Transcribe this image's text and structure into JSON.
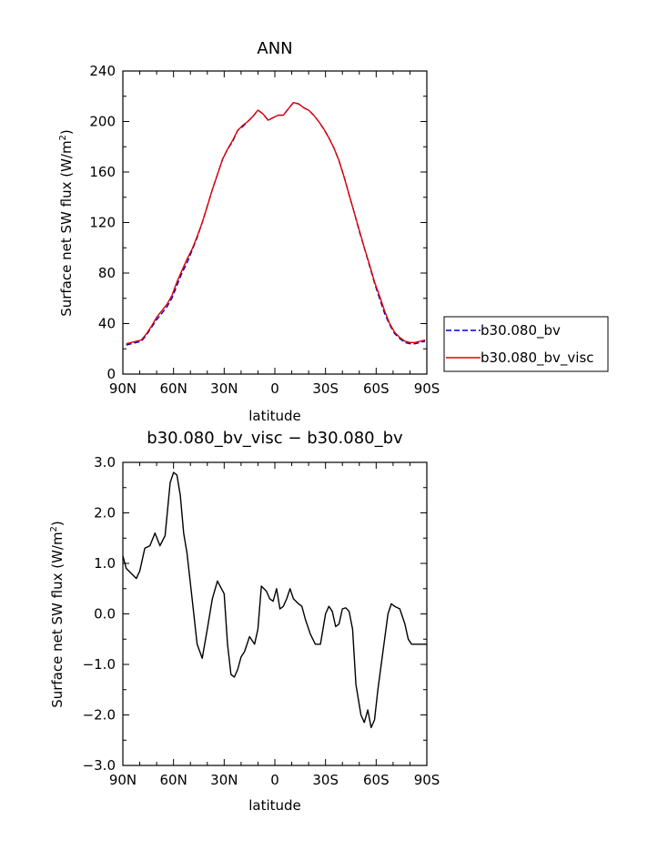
{
  "chart_data": [
    {
      "type": "line",
      "title": "ANN",
      "xlabel": "latitude",
      "ylabel": "Surface net SW flux (W/m²)",
      "ylabel_parts": [
        "Surface net SW flux (W/m",
        "2",
        ")"
      ],
      "xlim": [
        90,
        -90
      ],
      "ylim": [
        0,
        240
      ],
      "xticks": [
        90,
        60,
        30,
        0,
        -30,
        -60,
        -90
      ],
      "xtick_labels": [
        "90N",
        "60N",
        "30N",
        "0",
        "30S",
        "60S",
        "90S"
      ],
      "yticks": [
        0,
        40,
        80,
        120,
        160,
        200,
        240
      ],
      "ytick_labels": [
        "0",
        "40",
        "80",
        "120",
        "160",
        "200",
        "240"
      ],
      "grid": false,
      "legend_placement": "right",
      "x": [
        88,
        85,
        82,
        79,
        76,
        73,
        70,
        67,
        64,
        61,
        58,
        55,
        52,
        49,
        46,
        43,
        40,
        37,
        34,
        31,
        28,
        25,
        22,
        19,
        16,
        13,
        10,
        7,
        4,
        1,
        -2,
        -5,
        -8,
        -11,
        -14,
        -17,
        -20,
        -23,
        -26,
        -29,
        -32,
        -35,
        -38,
        -41,
        -44,
        -47,
        -50,
        -53,
        -56,
        -59,
        -62,
        -65,
        -68,
        -71,
        -74,
        -77,
        -80,
        -83,
        -86,
        -89
      ],
      "series": [
        {
          "name": "b30.080_bv",
          "color": "#0000cc",
          "dash": "dashed",
          "values": [
            23,
            24,
            25,
            26,
            31,
            37,
            43,
            48,
            53,
            60,
            70,
            80,
            88,
            98,
            108,
            120,
            133,
            146,
            158,
            170,
            178,
            184,
            193,
            196,
            200,
            204,
            209,
            206,
            201,
            203,
            205,
            205,
            210,
            215,
            214,
            211,
            209,
            205,
            200,
            194,
            187,
            179,
            169,
            156,
            142,
            128,
            113,
            100,
            86,
            72,
            60,
            48,
            39,
            32,
            28,
            25,
            24,
            24,
            25,
            26
          ]
        },
        {
          "name": "b30.080_bv_visc",
          "color": "#e00000",
          "dash": "solid",
          "values": [
            24,
            25,
            26,
            27,
            32,
            38,
            45,
            50,
            55,
            62,
            73,
            82,
            91,
            99,
            109,
            120,
            133,
            146,
            158,
            170,
            178,
            185,
            193,
            197,
            200,
            204,
            209,
            206,
            201,
            203,
            205,
            205,
            210,
            215,
            214,
            211,
            209,
            205,
            200,
            194,
            187,
            179,
            169,
            156,
            142,
            128,
            114,
            100,
            87,
            73,
            62,
            50,
            40,
            33,
            29,
            26,
            25,
            25,
            26,
            27
          ]
        }
      ]
    },
    {
      "type": "line",
      "title": "b30.080_bv_visc − b30.080_bv",
      "xlabel": "latitude",
      "ylabel": "Surface net SW flux (W/m²)",
      "ylabel_parts": [
        "Surface net SW flux (W/m",
        "2",
        ")"
      ],
      "xlim": [
        90,
        -90
      ],
      "ylim": [
        -3,
        3
      ],
      "xticks": [
        90,
        60,
        30,
        0,
        -30,
        -60,
        -90
      ],
      "xtick_labels": [
        "90N",
        "60N",
        "30N",
        "0",
        "30S",
        "60S",
        "90S"
      ],
      "yticks": [
        -3,
        -2,
        -1,
        0,
        1,
        2,
        3
      ],
      "ytick_labels": [
        "−3.0",
        "−2.0",
        "−1.0",
        "0.0",
        "1.0",
        "2.0",
        "3.0"
      ],
      "grid": false,
      "series": [
        {
          "color": "#000000",
          "dash": "solid",
          "x": [
            90,
            88,
            85,
            82,
            80,
            77,
            74,
            71,
            68,
            65,
            62,
            60,
            58,
            56,
            54,
            52,
            49,
            46,
            43,
            40,
            37,
            34,
            30,
            28,
            26,
            24,
            22,
            20,
            18,
            15,
            12,
            10,
            8,
            5,
            3,
            1,
            -1,
            -3,
            -5,
            -7,
            -9,
            -11,
            -14,
            -16,
            -18,
            -21,
            -24,
            -27,
            -30,
            -32,
            -34,
            -36,
            -38,
            -40,
            -42,
            -44,
            -46,
            -48,
            -51,
            -53,
            -55,
            -57,
            -59,
            -61,
            -63,
            -65,
            -67,
            -69,
            -71,
            -74,
            -77,
            -79,
            -81,
            -84,
            -86,
            -88,
            -90
          ],
          "values": [
            1.15,
            0.9,
            0.8,
            0.7,
            0.85,
            1.3,
            1.35,
            1.6,
            1.35,
            1.55,
            2.6,
            2.8,
            2.75,
            2.35,
            1.6,
            1.2,
            0.3,
            -0.6,
            -0.88,
            -0.3,
            0.3,
            0.65,
            0.4,
            -0.6,
            -1.2,
            -1.25,
            -1.1,
            -0.85,
            -0.75,
            -0.45,
            -0.6,
            -0.3,
            0.55,
            0.45,
            0.3,
            0.25,
            0.5,
            0.1,
            0.15,
            0.3,
            0.5,
            0.3,
            0.2,
            0.15,
            -0.1,
            -0.4,
            -0.6,
            -0.6,
            0.0,
            0.15,
            0.05,
            -0.25,
            -0.2,
            0.1,
            0.12,
            0.05,
            -0.3,
            -1.4,
            -2.0,
            -2.15,
            -1.9,
            -2.25,
            -2.1,
            -1.5,
            -1.0,
            -0.5,
            0.0,
            0.2,
            0.15,
            0.1,
            -0.2,
            -0.5,
            -0.6,
            -0.6,
            -0.6,
            -0.6,
            -0.6
          ]
        }
      ]
    }
  ]
}
